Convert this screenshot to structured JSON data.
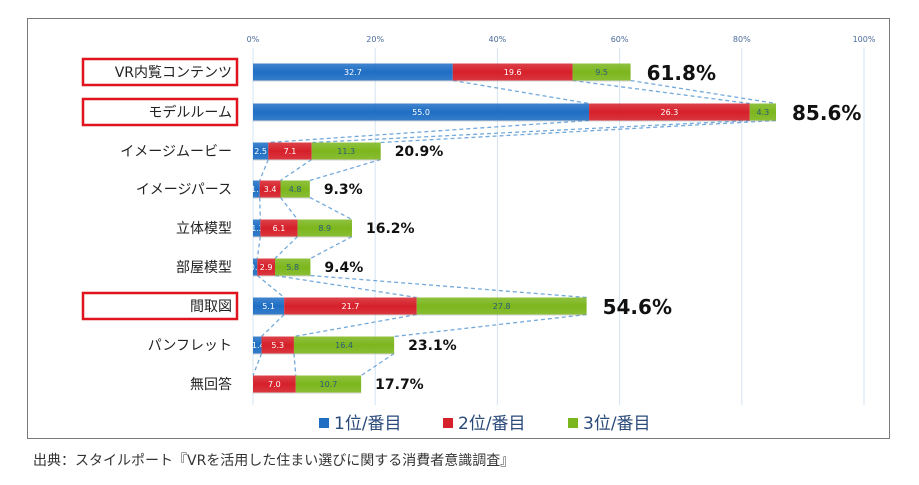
{
  "chart_data": {
    "type": "bar",
    "orientation": "horizontal",
    "stacked": true,
    "title": "",
    "xlabel": "",
    "ylabel": "",
    "xlim": [
      0,
      100
    ],
    "x_ticks": [
      "0%",
      "20%",
      "40%",
      "60%",
      "80%",
      "100%"
    ],
    "grid": true,
    "legend_position": "bottom",
    "categories": [
      "VR内覧コンテンツ",
      "モデルルーム",
      "イメージムービー",
      "イメージパース",
      "立体模型",
      "部屋模型",
      "間取図",
      "パンフレット",
      "無回答"
    ],
    "highlighted_categories": [
      "VR内覧コンテンツ",
      "モデルルーム",
      "間取図"
    ],
    "series": [
      {
        "name": "1位/番目",
        "color": "#1f6ec4",
        "values": [
          32.7,
          55.0,
          2.5,
          1.1,
          1.2,
          0.7,
          5.1,
          1.4,
          0.0
        ]
      },
      {
        "name": "2位/番目",
        "color": "#d6202a",
        "values": [
          19.6,
          26.3,
          7.1,
          3.4,
          6.1,
          2.9,
          21.7,
          5.3,
          7.0
        ]
      },
      {
        "name": "3位/番目",
        "color": "#7cb61d",
        "values": [
          9.5,
          4.3,
          11.3,
          4.8,
          8.9,
          5.8,
          27.8,
          16.4,
          10.7
        ]
      }
    ],
    "segment_labels": [
      [
        "32.7",
        "19.6",
        "9.5"
      ],
      [
        "55.0",
        "26.3",
        "4.3"
      ],
      [
        "2.5",
        "7.1",
        "11.3"
      ],
      [
        "1.1",
        "3.4",
        "4.8"
      ],
      [
        "1.2",
        "6.1",
        "8.9"
      ],
      [
        "0.7",
        "2.9",
        "5.8"
      ],
      [
        "5.1",
        "21.7",
        "27.8"
      ],
      [
        "1.4",
        "5.3",
        "16.4"
      ],
      [
        "0.0",
        "7.0",
        "10.7"
      ]
    ],
    "totals": [
      "61.8%",
      "85.6%",
      "20.9%",
      "9.3%",
      "16.2%",
      "9.4%",
      "54.6%",
      "23.1%",
      "17.7%"
    ],
    "connector_lines": "dashed light-blue lines linking segment boundaries between adjacent bars"
  },
  "legend": {
    "items": [
      {
        "label": "1位/番目",
        "color": "#1f6ec4"
      },
      {
        "label": "2位/番目",
        "color": "#d6202a"
      },
      {
        "label": "3位/番目",
        "color": "#7cb61d"
      }
    ]
  },
  "source": {
    "text": "出典：スタイルポート『VRを活用した住まい選びに関する消費者意識調査』"
  },
  "colors": {
    "highlight_box": "#e0141e",
    "grid": "#d6e4f3",
    "connector": "#5b9bd5",
    "frame": "#7a7a7a"
  }
}
